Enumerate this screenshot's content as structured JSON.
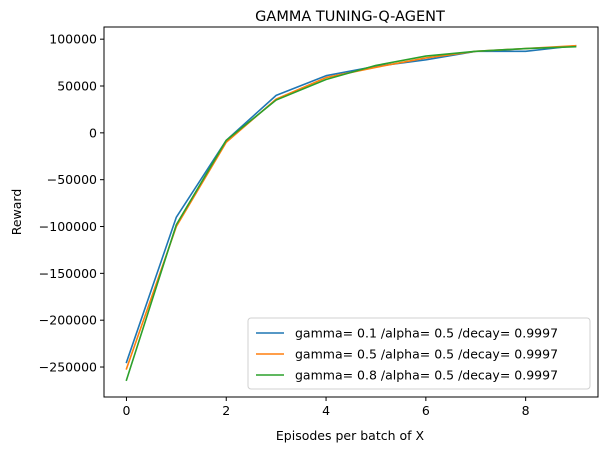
{
  "chart_data": {
    "type": "line",
    "title": "GAMMA TUNING-Q-AGENT",
    "xlabel": "Episodes per batch of X",
    "ylabel": "Reward",
    "xlim": [
      -0.45,
      9.45
    ],
    "ylim": [
      -282000,
      113000
    ],
    "x": [
      0,
      1,
      2,
      3,
      4,
      5,
      6,
      7,
      8,
      9
    ],
    "x_ticks": [
      0,
      2,
      4,
      6,
      8
    ],
    "x_tick_labels": [
      "0",
      "2",
      "4",
      "6",
      "8"
    ],
    "y_ticks": [
      100000,
      50000,
      0,
      -50000,
      -100000,
      -150000,
      -200000,
      -250000
    ],
    "y_tick_labels": [
      "100000",
      "50000",
      "0",
      "−50000",
      "−100000",
      "−150000",
      "−200000",
      "−250000"
    ],
    "grid": false,
    "legend_position": "bottom-right",
    "series": [
      {
        "name": "gamma= 0.1 /alpha= 0.5 /decay= 0.9997",
        "color": "#1f77b4",
        "values": [
          -245000,
          -90000,
          -8000,
          40000,
          61000,
          71000,
          78000,
          87000,
          87000,
          93000
        ]
      },
      {
        "name": "gamma= 0.5 /alpha= 0.5 /decay= 0.9997",
        "color": "#ff7f0e",
        "values": [
          -252000,
          -100000,
          -10000,
          36000,
          59000,
          70000,
          80000,
          87000,
          90000,
          93000
        ]
      },
      {
        "name": "gamma= 0.8 /alpha= 0.5 /decay= 0.9997",
        "color": "#2ca02c",
        "values": [
          -264000,
          -98000,
          -8000,
          35000,
          57000,
          72000,
          82000,
          87000,
          90000,
          92000
        ]
      }
    ]
  }
}
